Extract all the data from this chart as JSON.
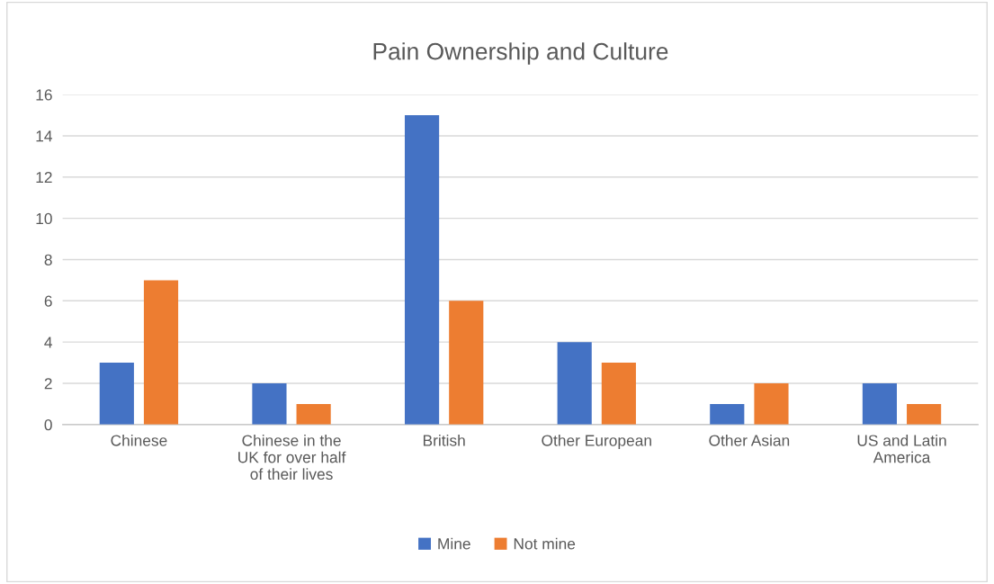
{
  "chart_data": {
    "type": "bar",
    "title": "Pain Ownership and Culture",
    "categories": [
      "Chinese",
      "Chinese in the UK for over half of their lives",
      "British",
      "Other European",
      "Other Asian",
      "US and Latin America"
    ],
    "series": [
      {
        "name": "Mine",
        "color": "#4472c4",
        "values": [
          3,
          2,
          15,
          4,
          1,
          2
        ]
      },
      {
        "name": "Not mine",
        "color": "#ed7d31",
        "values": [
          7,
          1,
          6,
          3,
          2,
          1
        ]
      }
    ],
    "ylim": [
      0,
      16
    ],
    "yticks": [
      0,
      2,
      4,
      6,
      8,
      10,
      12,
      14,
      16
    ],
    "grid": "y",
    "legend": "bottom"
  }
}
